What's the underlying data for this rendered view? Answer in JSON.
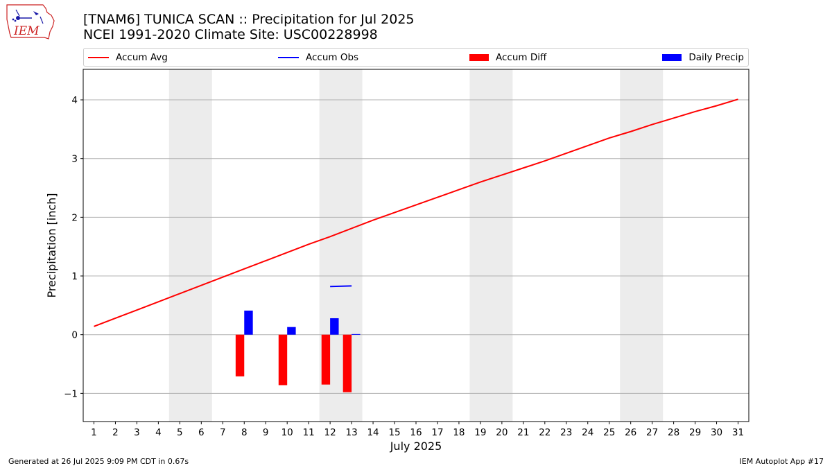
{
  "logo": {
    "text": "IEM"
  },
  "title": {
    "line1": "[TNAM6] TUNICA SCAN :: Precipitation for Jul 2025",
    "line2": "NCEI 1991-2020 Climate Site: USC00228998"
  },
  "legend": {
    "items": [
      {
        "label": "Accum Avg",
        "color": "#ff0000",
        "kind": "line"
      },
      {
        "label": "Accum Obs",
        "color": "#0000ff",
        "kind": "line"
      },
      {
        "label": "Accum Diff",
        "color": "#ff0000",
        "kind": "box"
      },
      {
        "label": "Daily Precip",
        "color": "#0000ff",
        "kind": "box"
      }
    ]
  },
  "footer": {
    "left": "Generated at 26 Jul 2025 9:09 PM CDT in 0.67s",
    "right": "IEM Autoplot App #17"
  },
  "chart_data": {
    "type": "bar",
    "xlabel": "July 2025",
    "ylabel": "Precipitation [inch]",
    "x": [
      1,
      2,
      3,
      4,
      5,
      6,
      7,
      8,
      9,
      10,
      11,
      12,
      13,
      14,
      15,
      16,
      17,
      18,
      19,
      20,
      21,
      22,
      23,
      24,
      25,
      26,
      27,
      28,
      29,
      30,
      31
    ],
    "xlim": [
      0.5,
      31.5
    ],
    "ylim": [
      -1.48,
      4.52
    ],
    "yticks": [
      -1,
      0,
      1,
      2,
      3,
      4
    ],
    "ytick_labels": [
      "−1",
      "0",
      "1",
      "2",
      "3",
      "4"
    ],
    "grid": "y",
    "legend_position": "top",
    "weekend_shading": [
      [
        4.5,
        6.5
      ],
      [
        11.5,
        13.5
      ],
      [
        18.5,
        20.5
      ],
      [
        25.5,
        27.5
      ]
    ],
    "series": [
      {
        "name": "Accum Avg",
        "kind": "line",
        "color": "#ff0000",
        "x": [
          1,
          2,
          3,
          4,
          5,
          6,
          7,
          8,
          9,
          10,
          11,
          12,
          13,
          14,
          15,
          16,
          17,
          18,
          19,
          20,
          21,
          22,
          23,
          24,
          25,
          26,
          27,
          28,
          29,
          30,
          31
        ],
        "values": [
          0.14,
          0.28,
          0.42,
          0.56,
          0.7,
          0.84,
          0.98,
          1.12,
          1.26,
          1.4,
          1.54,
          1.67,
          1.81,
          1.95,
          2.08,
          2.21,
          2.34,
          2.47,
          2.6,
          2.72,
          2.84,
          2.96,
          3.09,
          3.22,
          3.35,
          3.46,
          3.58,
          3.69,
          3.8,
          3.9,
          4.01
        ]
      },
      {
        "name": "Accum Obs",
        "kind": "line",
        "color": "#0000ff",
        "x": [
          12,
          13
        ],
        "values": [
          0.82,
          0.83
        ]
      },
      {
        "name": "Accum Diff",
        "kind": "bar",
        "color": "#ff0000",
        "x": [
          8,
          10,
          12,
          13
        ],
        "values": [
          -0.71,
          -0.86,
          -0.85,
          -0.98
        ]
      },
      {
        "name": "Daily Precip",
        "kind": "bar",
        "color": "#0000ff",
        "x": [
          8,
          10,
          12,
          13
        ],
        "values": [
          0.41,
          0.13,
          0.28,
          0.01
        ]
      }
    ]
  }
}
